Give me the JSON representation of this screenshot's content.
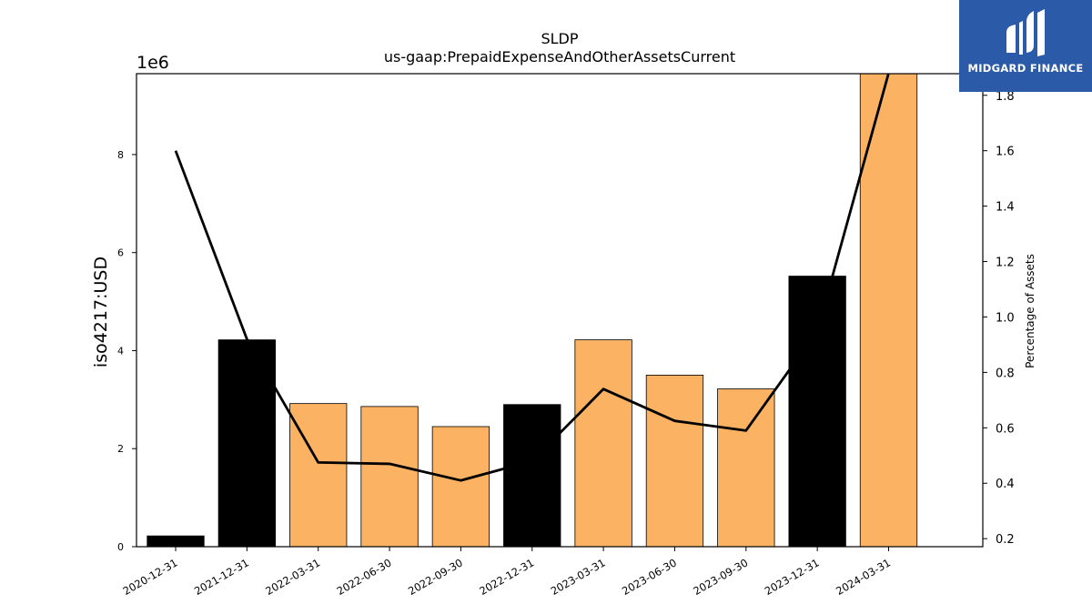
{
  "chart_data": {
    "type": "bar",
    "title": "SLDP",
    "subtitle": "us-gaap:PrepaidExpenseAndOtherAssetsCurrent",
    "ylabel": "iso4217:USD",
    "y2label": "Percentage of Assets",
    "offset_label": "1e6",
    "categories": [
      "2020-12-31",
      "2021-12-31",
      "2022-03-31",
      "2022-06-30",
      "2022-09-30",
      "2022-12-31",
      "2023-03-31",
      "2023-06-30",
      "2023-09-30",
      "2023-12-31",
      "2024-03-31"
    ],
    "values": [
      0.22,
      4.22,
      2.92,
      2.86,
      2.45,
      2.9,
      4.22,
      3.5,
      3.22,
      5.52,
      9.65
    ],
    "bar_colors": [
      "#000000",
      "#000000",
      "#fbb263",
      "#fbb263",
      "#fbb263",
      "#000000",
      "#fbb263",
      "#fbb263",
      "#fbb263",
      "#000000",
      "#fbb263"
    ],
    "ylim": [
      0,
      9.65
    ],
    "yticks": [
      0,
      2,
      4,
      6,
      8
    ],
    "line": {
      "values": [
        1.6,
        0.92,
        0.475,
        0.47,
        0.41,
        0.48,
        0.74,
        0.625,
        0.59,
        0.95,
        1.88
      ],
      "color": "#000000"
    },
    "y2lim": [
      0.171,
      1.878
    ],
    "y2ticks": [
      "0.2",
      "0.4",
      "0.6",
      "0.8",
      "1.0",
      "1.2",
      "1.4",
      "1.6",
      "1.8"
    ],
    "grid": false,
    "legend": "none"
  },
  "logo": {
    "text": "MIDGARD FINANCE",
    "background": "#2b5aa8"
  }
}
